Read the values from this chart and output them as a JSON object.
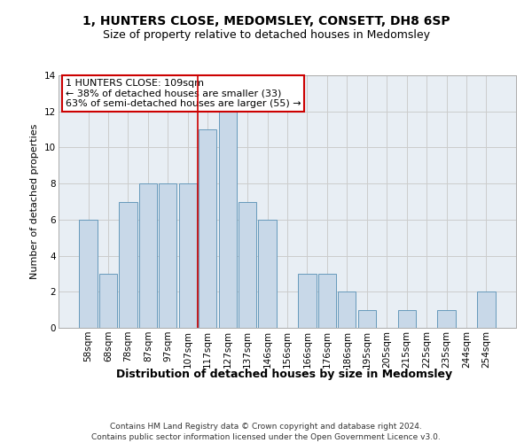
{
  "title": "1, HUNTERS CLOSE, MEDOMSLEY, CONSETT, DH8 6SP",
  "subtitle": "Size of property relative to detached houses in Medomsley",
  "xlabel": "Distribution of detached houses by size in Medomsley",
  "ylabel": "Number of detached properties",
  "bar_labels": [
    "58sqm",
    "68sqm",
    "78sqm",
    "87sqm",
    "97sqm",
    "107sqm",
    "117sqm",
    "127sqm",
    "137sqm",
    "146sqm",
    "156sqm",
    "166sqm",
    "176sqm",
    "186sqm",
    "195sqm",
    "205sqm",
    "215sqm",
    "225sqm",
    "235sqm",
    "244sqm",
    "254sqm"
  ],
  "bar_values": [
    6,
    3,
    7,
    8,
    8,
    8,
    11,
    12,
    7,
    6,
    0,
    3,
    3,
    2,
    1,
    0,
    1,
    0,
    1,
    0,
    2
  ],
  "bar_color": "#c8d8e8",
  "bar_edge_color": "#6699bb",
  "ylim": [
    0,
    14
  ],
  "yticks": [
    0,
    2,
    4,
    6,
    8,
    10,
    12,
    14
  ],
  "grid_color": "#cccccc",
  "bg_color": "#e8eef4",
  "annotation_text": "1 HUNTERS CLOSE: 109sqm\n← 38% of detached houses are smaller (33)\n63% of semi-detached houses are larger (55) →",
  "vline_x": 5.5,
  "vline_color": "#cc0000",
  "annotation_box_color": "#ffffff",
  "annotation_box_edge": "#cc0000",
  "footer_text": "Contains HM Land Registry data © Crown copyright and database right 2024.\nContains public sector information licensed under the Open Government Licence v3.0.",
  "title_fontsize": 10,
  "subtitle_fontsize": 9,
  "xlabel_fontsize": 9,
  "ylabel_fontsize": 8,
  "tick_fontsize": 7.5,
  "annotation_fontsize": 8,
  "footer_fontsize": 6.5
}
